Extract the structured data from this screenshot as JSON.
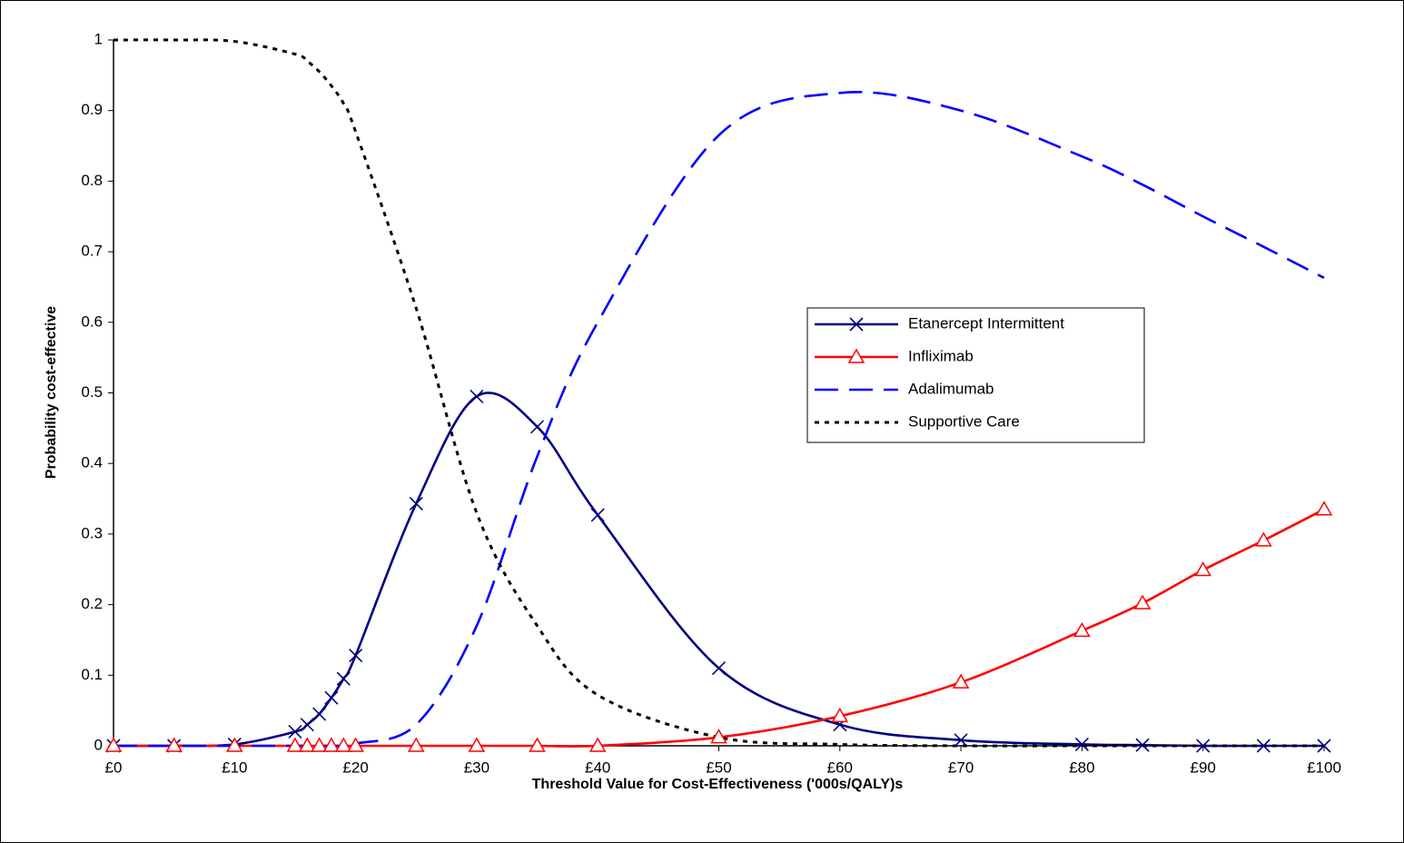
{
  "chart_data": {
    "type": "line",
    "x_label": "Threshold Value for Cost-Effectiveness ('000s/QALY)s",
    "y_label": "Probability cost-effective",
    "x": [
      0,
      5,
      10,
      15,
      16,
      17,
      18,
      19,
      20,
      25,
      30,
      35,
      40,
      50,
      60,
      70,
      80,
      85,
      90,
      95,
      100
    ],
    "series": [
      {
        "name": "Etanercept Intermittent",
        "color": "#000080",
        "line_style": "solid",
        "marker": "x",
        "values": [
          0,
          0,
          0.002,
          0.02,
          0.03,
          0.045,
          0.068,
          0.095,
          0.128,
          0.343,
          0.495,
          0.452,
          0.327,
          0.11,
          0.03,
          0.008,
          0.002,
          0.001,
          0,
          0,
          0
        ]
      },
      {
        "name": "Infliximab",
        "color": "#ff0000",
        "line_style": "solid",
        "marker": "triangle",
        "values": [
          0,
          0,
          0,
          0,
          0,
          0,
          0,
          0,
          0,
          0,
          0,
          0,
          0,
          0.012,
          0.042,
          0.09,
          0.163,
          0.202,
          0.249,
          0.291,
          0.335
        ]
      },
      {
        "name": "Adalimumab",
        "color": "#0000ff",
        "line_style": "dashed",
        "marker": "none",
        "values": [
          0,
          0,
          0,
          0,
          0,
          0,
          0,
          0,
          0.003,
          0.03,
          0.17,
          0.41,
          0.6,
          0.865,
          0.925,
          0.9,
          0.835,
          0.795,
          0.75,
          0.707,
          0.663
        ]
      },
      {
        "name": "Supportive Care",
        "color": "#000000",
        "line_style": "dotted",
        "marker": "none",
        "values": [
          1,
          1,
          0.998,
          0.98,
          0.97,
          0.955,
          0.935,
          0.91,
          0.87,
          0.62,
          0.33,
          0.17,
          0.072,
          0.012,
          0.002,
          0,
          0,
          0,
          0,
          0,
          0
        ]
      }
    ],
    "xlim": [
      0,
      100
    ],
    "ylim": [
      0,
      1
    ],
    "xticks": [
      {
        "value": 0,
        "label": "£0"
      },
      {
        "value": 10,
        "label": "£10"
      },
      {
        "value": 20,
        "label": "£20"
      },
      {
        "value": 30,
        "label": "£30"
      },
      {
        "value": 40,
        "label": "£40"
      },
      {
        "value": 50,
        "label": "£50"
      },
      {
        "value": 60,
        "label": "£60"
      },
      {
        "value": 70,
        "label": "£70"
      },
      {
        "value": 80,
        "label": "£80"
      },
      {
        "value": 90,
        "label": "£90"
      },
      {
        "value": 100,
        "label": "£100"
      }
    ],
    "yticks": [
      0,
      0.1,
      0.2,
      0.3,
      0.4,
      0.5,
      0.6,
      0.7,
      0.8,
      0.9,
      1
    ],
    "grid": false,
    "legend_position": "center-right"
  }
}
